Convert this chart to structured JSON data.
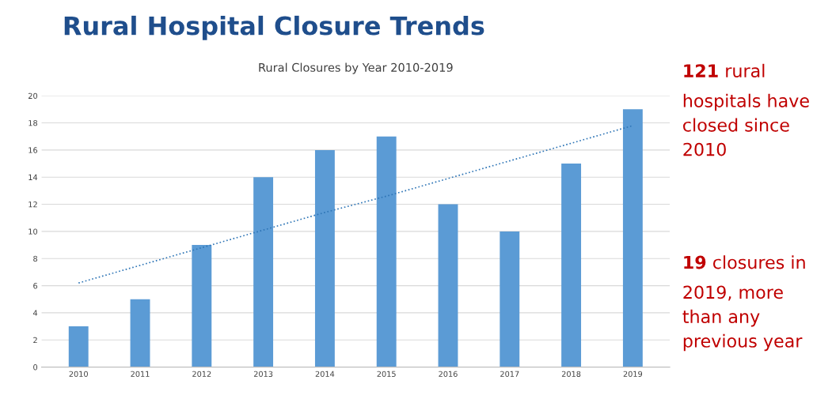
{
  "chart_data": {
    "type": "bar",
    "title": "Rural Hospital Closure Trends",
    "subtitle": "Rural Closures by Year 2010-2019",
    "categories": [
      "2010",
      "2011",
      "2012",
      "2013",
      "2014",
      "2015",
      "2016",
      "2017",
      "2018",
      "2019"
    ],
    "series": [
      {
        "color": "#5b9bd5",
        "values": [
          3,
          5,
          9,
          14,
          16,
          17,
          12,
          10,
          15,
          19
        ]
      },
      {
        "type": "line",
        "color": "#2e75b6",
        "line_style": "dotted",
        "values": [
          6.2,
          7.5,
          8.8,
          10.1,
          11.4,
          12.6,
          13.9,
          15.2,
          16.5,
          17.8
        ]
      }
    ],
    "ylim": [
      0,
      20
    ],
    "yticks": [
      0,
      2,
      4,
      6,
      8,
      10,
      12,
      14,
      16,
      18,
      20
    ],
    "grid": "y",
    "annotations": [
      "121 rural\nhospitals have\nclosed since\n2010",
      "19 closures in\n2019, more\nthan any\nprevious year"
    ]
  }
}
